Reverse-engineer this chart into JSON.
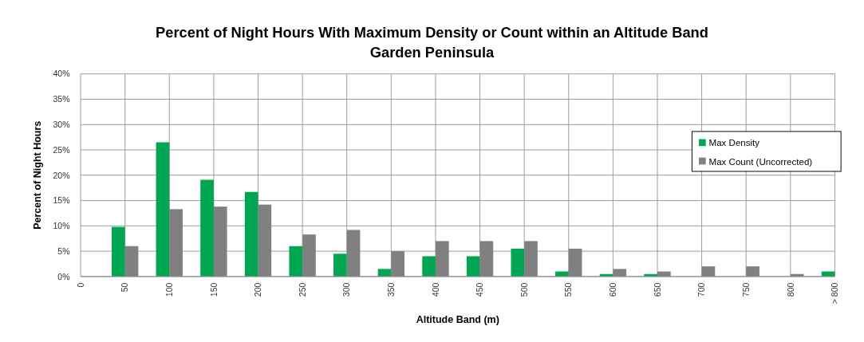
{
  "chart_data": {
    "type": "bar",
    "title": "Percent of Night Hours With Maximum Density or Count within an Altitude Band",
    "subtitle": "Garden Peninsula",
    "xlabel": "Altitude Band (m)",
    "ylabel": "Percent of Night Hours",
    "categories": [
      "0",
      "50",
      "100",
      "150",
      "200",
      "250",
      "300",
      "350",
      "400",
      "450",
      "500",
      "550",
      "600",
      "650",
      "700",
      "750",
      "800",
      "> 800"
    ],
    "series": [
      {
        "name": "Max Density",
        "color": "#00a651",
        "values": [
          null,
          9.8,
          26.5,
          19.1,
          16.7,
          6,
          4.5,
          1.5,
          4,
          4,
          5.5,
          1,
          0.5,
          0.5,
          0,
          0,
          0,
          1
        ]
      },
      {
        "name": "Max Count (Uncorrected)",
        "color": "#808080",
        "values": [
          null,
          6,
          13.3,
          13.8,
          14.2,
          8.3,
          9.2,
          5,
          7,
          7,
          7,
          5.5,
          1.5,
          1,
          2,
          2,
          0.5,
          null
        ]
      }
    ],
    "ylim": [
      0,
      40
    ],
    "yticks": [
      {
        "value": 0,
        "label": "0%"
      },
      {
        "value": 5,
        "label": "5%"
      },
      {
        "value": 10,
        "label": "10%"
      },
      {
        "value": 15,
        "label": "15%"
      },
      {
        "value": 20,
        "label": "20%"
      },
      {
        "value": 25,
        "label": "25%"
      },
      {
        "value": 30,
        "label": "30%"
      },
      {
        "value": 35,
        "label": "35%"
      },
      {
        "value": 40,
        "label": "40%"
      }
    ],
    "grid": true,
    "legend": "right"
  }
}
